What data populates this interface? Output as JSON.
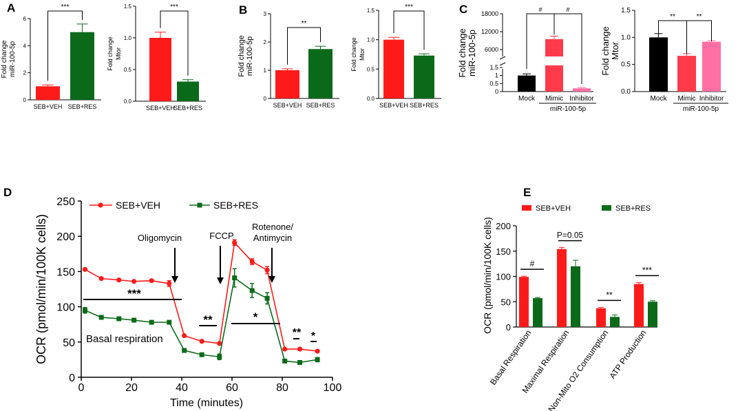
{
  "panels": {
    "A": "A",
    "B": "B",
    "C": "C",
    "D": "D",
    "E": "E"
  },
  "colors": {
    "veh": "#ff1a1a",
    "res": "#0b6a1a",
    "mock": "#000000",
    "mimic": "#ff3b4b",
    "inhibitor": "#ff6fa3"
  },
  "chart_data": [
    {
      "id": "A1",
      "type": "bar",
      "ylabel_lines": [
        "Fold change",
        "miR-100-5p"
      ],
      "categories": [
        "SEB+VEH",
        "SEB+RES"
      ],
      "values": [
        1.0,
        5.0
      ],
      "errors": [
        0.1,
        0.6
      ],
      "ylim": [
        0,
        6
      ],
      "yticks": [
        "0",
        "2",
        "4",
        "6"
      ],
      "sig": "***",
      "colors": [
        "#ff1a1a",
        "#0b6a1a"
      ]
    },
    {
      "id": "A2",
      "type": "bar",
      "ylabel_lines": [
        "Fold change",
        "Mtor"
      ],
      "categories": [
        "SEB+VEH",
        "SEB+RES"
      ],
      "values": [
        1.0,
        0.31
      ],
      "errors": [
        0.09,
        0.03
      ],
      "ylim": [
        0,
        1.5
      ],
      "yticks": [
        "0.0",
        "0.5",
        "1.0",
        "1.5"
      ],
      "sig": "***",
      "colors": [
        "#ff1a1a",
        "#0b6a1a"
      ]
    },
    {
      "id": "B1",
      "type": "bar",
      "ylabel_lines": [
        "Fold change",
        "miR-100-5p"
      ],
      "categories": [
        "SEB+VEH",
        "SEB+RES"
      ],
      "values": [
        1.0,
        1.75
      ],
      "errors": [
        0.05,
        0.1
      ],
      "ylim": [
        0,
        3
      ],
      "yticks": [
        "0",
        "1",
        "2",
        "3"
      ],
      "sig": "**",
      "colors": [
        "#ff1a1a",
        "#0b6a1a"
      ]
    },
    {
      "id": "B2",
      "type": "bar",
      "ylabel_lines": [
        "Fold change",
        "Mtor"
      ],
      "categories": [
        "SEB+VEH",
        "SEB+RES"
      ],
      "values": [
        1.0,
        0.73
      ],
      "errors": [
        0.04,
        0.03
      ],
      "ylim": [
        0,
        1.5
      ],
      "yticks": [
        "0.0",
        "0.5",
        "1.0",
        "1.5"
      ],
      "sig": "***",
      "colors": [
        "#ff1a1a",
        "#0b6a1a"
      ]
    },
    {
      "id": "C1",
      "type": "bar",
      "ylabel_lines": [
        "Fold change",
        "miR-100-5p"
      ],
      "categories": [
        "Mock",
        "Mimic",
        "Inhibitor"
      ],
      "group_label": "miR-100-5p",
      "values": [
        1.0,
        9500,
        0.2
      ],
      "errors": [
        0.1,
        1000,
        0.05
      ],
      "yticks_upper": [
        "6000",
        "12000",
        "18000"
      ],
      "yticks_lower": [
        "0",
        "0.5",
        "1",
        "1.5"
      ],
      "sig": [
        "#",
        "#"
      ],
      "colors": [
        "#000000",
        "#ff3b4b",
        "#ff6fa3"
      ]
    },
    {
      "id": "C2",
      "type": "bar",
      "ylabel_lines": [
        "Fold change",
        "Mtor"
      ],
      "categories": [
        "Mock",
        "Mimic",
        "Inhibitor"
      ],
      "group_label": "miR-100-5p",
      "values": [
        1.0,
        0.66,
        0.92
      ],
      "errors": [
        0.07,
        0.04,
        0.02
      ],
      "ylim": [
        0,
        1.5
      ],
      "yticks": [
        "0.0",
        "0.5",
        "1.0",
        "1.5"
      ],
      "sig": [
        "**",
        "**"
      ],
      "colors": [
        "#000000",
        "#ff3b4b",
        "#ff6fa3"
      ]
    },
    {
      "id": "D",
      "type": "line",
      "ylabel": "OCR (pmol/min/100K cells)",
      "xlabel": "Time (minutes)",
      "xlim": [
        0,
        100
      ],
      "ylim": [
        0,
        250
      ],
      "xticks": [
        "0",
        "20",
        "40",
        "60",
        "80",
        "100"
      ],
      "yticks": [
        "0",
        "50",
        "100",
        "150",
        "200",
        "250"
      ],
      "series": [
        {
          "name": "SEB+VEH",
          "color": "#ff1a1a",
          "x": [
            1.5,
            8,
            15,
            21,
            28,
            35,
            41,
            48,
            55,
            61,
            68,
            74,
            81,
            87,
            94
          ],
          "y": [
            153,
            140,
            138,
            136,
            137,
            133,
            59,
            51,
            48,
            191,
            164,
            152,
            40,
            40,
            37
          ],
          "err": [
            0,
            0,
            0,
            0,
            0,
            4,
            0,
            0,
            0,
            4,
            4,
            5,
            0,
            0,
            0
          ]
        },
        {
          "name": "SEB+RES",
          "color": "#0b6a1a",
          "x": [
            1.5,
            8,
            15,
            21,
            28,
            35,
            41,
            48,
            55,
            61,
            68,
            74,
            81,
            87,
            94
          ],
          "y": [
            95,
            85,
            83,
            81,
            78,
            78,
            38,
            32,
            29,
            141,
            123,
            112,
            23,
            21,
            25
          ],
          "err": [
            4,
            0,
            0,
            0,
            0,
            0,
            0,
            0,
            4,
            13,
            10,
            8,
            0,
            0,
            3
          ]
        }
      ],
      "annotations": {
        "oligomycin": "Oligomycin",
        "fccp": "FCCP",
        "rotenone_1": "Rotenone/",
        "rotenone_2": "Antimycin",
        "basal": "Basal respiration",
        "sig1": "***",
        "sig2": "**",
        "sig3": "*",
        "sig4": "**",
        "sig5": "*"
      }
    },
    {
      "id": "E",
      "type": "bar",
      "ylabel": "OCR (pmol/min/100K cells)",
      "ylim": [
        0,
        200
      ],
      "yticks": [
        "0",
        "50",
        "100",
        "150",
        "200"
      ],
      "categories": [
        "Basal Respiration",
        "Maximal Respiration",
        "Non-Mito O2 Consumption",
        "ATP Production"
      ],
      "series": [
        {
          "name": "SEB+VEH",
          "color": "#ff1a1a",
          "values": [
            99,
            154,
            37,
            85
          ],
          "errors": [
            1.5,
            3,
            2,
            3
          ]
        },
        {
          "name": "SEB+RES",
          "color": "#0b6a1a",
          "values": [
            57,
            120,
            20,
            50
          ],
          "errors": [
            1.5,
            12,
            4,
            2
          ]
        }
      ],
      "sig": [
        "#",
        "P=0.05",
        "**",
        "***"
      ]
    }
  ]
}
